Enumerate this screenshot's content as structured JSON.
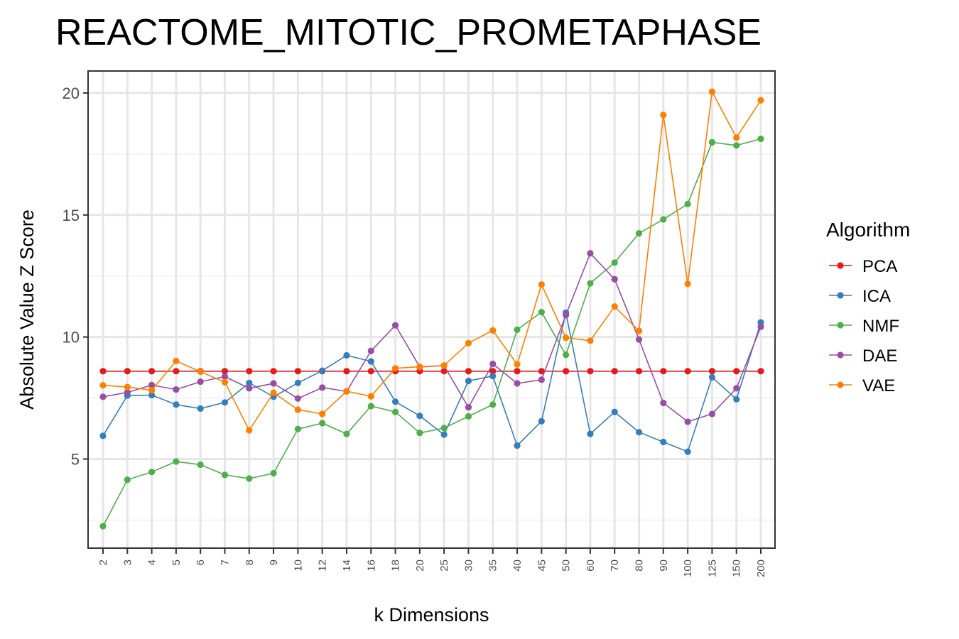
{
  "chart_data": {
    "type": "line",
    "title": "REACTOME_MITOTIC_PROMETAPHASE",
    "xlabel": "k Dimensions",
    "ylabel": "Absolute Value Z Score",
    "categories": [
      "2",
      "3",
      "4",
      "5",
      "6",
      "7",
      "8",
      "9",
      "10",
      "12",
      "14",
      "16",
      "18",
      "20",
      "25",
      "30",
      "35",
      "40",
      "45",
      "50",
      "60",
      "70",
      "80",
      "90",
      "100",
      "125",
      "150",
      "200"
    ],
    "ylim": [
      1.35,
      20.9
    ],
    "yticks": [
      5,
      10,
      15,
      20
    ],
    "grid": true,
    "legend": {
      "title": "Algorithm",
      "position": "right"
    },
    "series": [
      {
        "name": "PCA",
        "color": "#e41a1c",
        "values": [
          8.6,
          8.6,
          8.6,
          8.6,
          8.6,
          8.6,
          8.6,
          8.6,
          8.6,
          8.6,
          8.6,
          8.6,
          8.6,
          8.6,
          8.6,
          8.6,
          8.6,
          8.6,
          8.6,
          8.6,
          8.6,
          8.6,
          8.6,
          8.6,
          8.6,
          8.6,
          8.6,
          8.6
        ]
      },
      {
        "name": "ICA",
        "color": "#377eb8",
        "values": [
          5.95,
          7.6,
          7.62,
          7.23,
          7.07,
          7.32,
          8.12,
          7.55,
          8.12,
          8.62,
          9.25,
          9.0,
          7.35,
          6.77,
          6.0,
          8.2,
          8.4,
          5.55,
          6.55,
          11.0,
          6.03,
          6.93,
          6.1,
          5.7,
          5.3,
          8.35,
          7.45,
          10.6
        ]
      },
      {
        "name": "NMF",
        "color": "#4daf4a",
        "values": [
          2.25,
          4.15,
          4.47,
          4.9,
          4.77,
          4.35,
          4.2,
          4.42,
          6.23,
          6.47,
          6.03,
          7.17,
          6.93,
          6.07,
          6.27,
          6.75,
          7.23,
          10.3,
          11.02,
          9.27,
          12.2,
          13.05,
          14.25,
          14.82,
          15.45,
          17.98,
          17.85,
          18.12
        ]
      },
      {
        "name": "DAE",
        "color": "#984ea3",
        "values": [
          7.55,
          7.73,
          8.03,
          7.85,
          8.17,
          8.38,
          7.9,
          8.1,
          7.48,
          7.93,
          7.77,
          9.43,
          10.48,
          8.77,
          8.83,
          7.12,
          8.9,
          8.1,
          8.25,
          10.9,
          13.43,
          12.37,
          9.9,
          7.3,
          6.53,
          6.85,
          7.9,
          10.42
        ]
      },
      {
        "name": "VAE",
        "color": "#ff7f00",
        "values": [
          8.02,
          7.95,
          7.82,
          9.02,
          8.58,
          8.15,
          6.18,
          7.72,
          7.02,
          6.85,
          7.78,
          7.57,
          8.72,
          8.78,
          8.83,
          9.75,
          10.27,
          8.88,
          12.15,
          9.97,
          9.85,
          11.25,
          10.25,
          19.1,
          12.18,
          20.05,
          18.17,
          19.7
        ]
      }
    ]
  }
}
